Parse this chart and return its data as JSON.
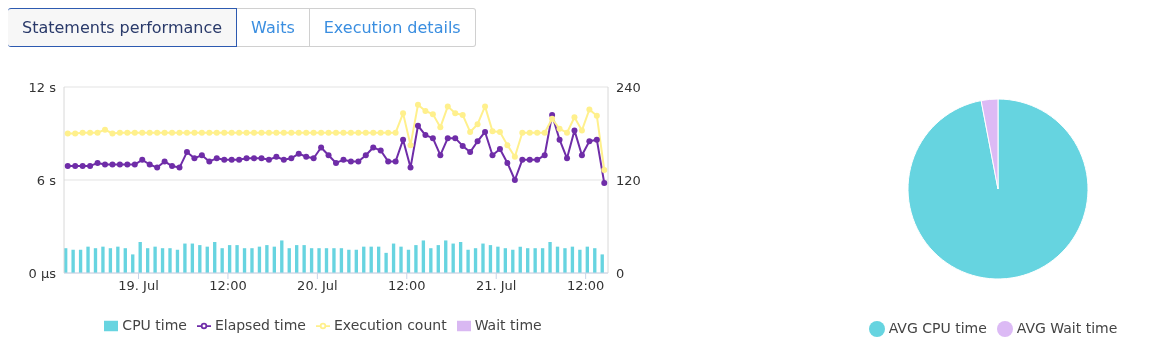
{
  "chart_data": [
    {
      "type": "line",
      "annotations": [
        "Statements performance",
        "Waits",
        "Execution details"
      ],
      "x": [
        "--07-18T14:30",
        "--07-18T15:30",
        "--07-18T16:30",
        "--07-18T17:30",
        "--07-18T18:30",
        "--07-18T19:30",
        "--07-18T20:30",
        "--07-18T21:30",
        "--07-18T22:30",
        "--07-18T23:30",
        "--07-19T00:30",
        "--07-19T01:30",
        "--07-19T02:30",
        "--07-19T03:30",
        "--07-19T04:30",
        "--07-19T05:30",
        "--07-19T06:30",
        "--07-19T07:30",
        "--07-19T08:30",
        "--07-19T09:30",
        "--07-19T10:30",
        "--07-19T11:30",
        "--07-19T12:30",
        "--07-19T13:30",
        "--07-19T14:30",
        "--07-19T15:30",
        "--07-19T16:30",
        "--07-19T17:30",
        "--07-19T18:30",
        "--07-19T19:30",
        "--07-19T20:30",
        "--07-19T21:30",
        "--07-19T22:30",
        "--07-19T23:30",
        "--07-20T00:30",
        "--07-20T01:30",
        "--07-20T02:30",
        "--07-20T03:30",
        "--07-20T04:30",
        "--07-20T05:30",
        "--07-20T06:30",
        "--07-20T07:30",
        "--07-20T08:30",
        "--07-20T09:30",
        "--07-20T10:30",
        "--07-20T11:30",
        "--07-20T12:30",
        "--07-20T13:30",
        "--07-20T14:30",
        "--07-20T15:30",
        "--07-20T16:30",
        "--07-20T17:30",
        "--07-20T18:30",
        "--07-20T19:30",
        "--07-20T20:30",
        "--07-20T21:30",
        "--07-20T22:30",
        "--07-20T23:30",
        "--07-21T00:30",
        "--07-21T01:30",
        "--07-21T02:30",
        "--07-21T03:30",
        "--07-21T04:30",
        "--07-21T05:30",
        "--07-21T06:30",
        "--07-21T07:30",
        "--07-21T08:30",
        "--07-21T09:30",
        "--07-21T10:30",
        "--07-21T11:30",
        "--07-21T12:30",
        "--07-21T13:30",
        "--07-21T14:30"
      ],
      "xlim": [
        "--07-18T14:00",
        "--07-21T15:00"
      ],
      "xticks": [
        {
          "value": "--07-19T00:00",
          "label": "19. Jul"
        },
        {
          "value": "--07-19T12:00",
          "label": "12:00"
        },
        {
          "value": "--07-20T00:00",
          "label": "20. Jul"
        },
        {
          "value": "--07-20T12:00",
          "label": "12:00"
        },
        {
          "value": "--07-21T00:00",
          "label": "21. Jul"
        },
        {
          "value": "--07-21T12:00",
          "label": "12:00"
        }
      ],
      "ylim": [
        0,
        12
      ],
      "yticks": [
        {
          "value": 0,
          "label": "0 μs"
        },
        {
          "value": 6,
          "label": "6 s"
        },
        {
          "value": 12,
          "label": "12 s"
        }
      ],
      "y2lim": [
        0,
        240
      ],
      "y2ticks": [
        0,
        120,
        240
      ],
      "grid": "y",
      "legend": "bottom",
      "marker": "circle",
      "series": [
        {
          "name": "Elapsed time",
          "type": "line",
          "color": "#6f2da8",
          "values": [
            6.9,
            6.9,
            6.9,
            6.9,
            7.1,
            7.0,
            7.0,
            7.0,
            7.0,
            7.0,
            7.3,
            7.0,
            6.8,
            7.2,
            6.9,
            6.8,
            7.8,
            7.4,
            7.6,
            7.2,
            7.4,
            7.3,
            7.3,
            7.3,
            7.4,
            7.4,
            7.4,
            7.3,
            7.5,
            7.3,
            7.4,
            7.7,
            7.5,
            7.4,
            8.1,
            7.6,
            7.1,
            7.3,
            7.2,
            7.2,
            7.6,
            8.1,
            7.9,
            7.2,
            7.2,
            8.6,
            6.8,
            9.5,
            8.9,
            8.7,
            7.6,
            8.7,
            8.7,
            8.2,
            7.8,
            8.5,
            9.1,
            7.6,
            8.0,
            7.1,
            6.0,
            7.3,
            7.3,
            7.3,
            7.6,
            10.2,
            8.6,
            7.4,
            9.2,
            7.6,
            8.5,
            8.6,
            5.8
          ]
        },
        {
          "name": "Execution count",
          "type": "line",
          "axis": "y2",
          "color": "#fff08c",
          "values": [
            180,
            180,
            181,
            181,
            181,
            185,
            180,
            181,
            181,
            181,
            181,
            181,
            181,
            181,
            181,
            181,
            181,
            181,
            181,
            181,
            181,
            181,
            181,
            181,
            181,
            181,
            181,
            181,
            181,
            181,
            181,
            181,
            181,
            181,
            181,
            181,
            181,
            181,
            181,
            181,
            181,
            181,
            181,
            181,
            181,
            206,
            165,
            217,
            209,
            205,
            188,
            215,
            206,
            204,
            182,
            192,
            215,
            183,
            182,
            165,
            150,
            181,
            181,
            181,
            181,
            199,
            186,
            181,
            201,
            184,
            211,
            203,
            133
          ]
        },
        {
          "name": "CPU time",
          "type": "bar",
          "color": "#67d4e0",
          "values": [
            1.6,
            1.5,
            1.5,
            1.7,
            1.6,
            1.7,
            1.6,
            1.7,
            1.6,
            1.2,
            2.0,
            1.6,
            1.7,
            1.6,
            1.6,
            1.5,
            1.9,
            1.9,
            1.8,
            1.7,
            2.0,
            1.6,
            1.8,
            1.8,
            1.6,
            1.6,
            1.7,
            1.8,
            1.7,
            2.1,
            1.6,
            1.8,
            1.8,
            1.6,
            1.6,
            1.6,
            1.6,
            1.6,
            1.5,
            1.5,
            1.7,
            1.7,
            1.7,
            1.3,
            1.9,
            1.7,
            1.5,
            1.8,
            2.1,
            1.6,
            1.8,
            2.1,
            1.9,
            2.0,
            1.5,
            1.6,
            1.9,
            1.8,
            1.7,
            1.6,
            1.5,
            1.7,
            1.6,
            1.6,
            1.6,
            2.0,
            1.7,
            1.6,
            1.7,
            1.5,
            1.7,
            1.6,
            1.2
          ]
        },
        {
          "name": "Wait time",
          "type": "bar",
          "color": "#d9b8f2",
          "values": [
            null,
            null,
            null,
            null,
            null,
            null,
            null,
            null,
            null,
            null,
            null,
            null,
            null,
            null,
            null,
            null,
            null,
            null,
            null,
            null,
            null,
            null,
            null,
            null,
            null,
            null,
            null,
            null,
            null,
            null,
            null,
            null,
            null,
            null,
            null,
            null,
            null,
            null,
            null,
            null,
            null,
            null,
            null,
            null,
            null,
            null,
            null,
            null,
            null,
            null,
            null,
            null,
            null,
            null,
            null,
            null,
            null,
            null,
            null,
            null,
            null,
            null,
            null,
            null,
            null,
            null,
            null,
            null,
            null,
            null,
            null,
            null,
            null
          ]
        }
      ]
    },
    {
      "type": "pie",
      "categories": [
        "AVG CPU time",
        "AVG Wait time"
      ],
      "values": [
        97,
        3
      ],
      "colors": [
        "#66d4e0",
        "#dcbaf5"
      ],
      "legend": "bottom"
    }
  ]
}
